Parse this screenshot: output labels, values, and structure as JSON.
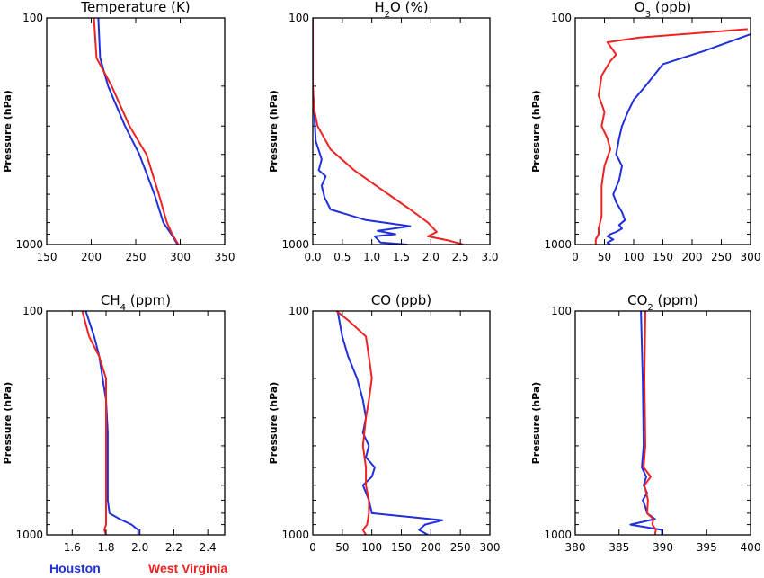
{
  "colors": {
    "houston": "#1f2fdc",
    "west_virginia": "#ee2222"
  },
  "legend": {
    "houston": "Houston",
    "west_virginia": "West Virginia"
  },
  "chart_data": [
    {
      "type": "line",
      "title": "Temperature (K)",
      "title_parts": [
        {
          "t": "Temperature (K)"
        }
      ],
      "ylabel": "Pressure (hPa)",
      "yscale": "log",
      "ylim": [
        1000,
        100
      ],
      "ytick_labels": [
        "100",
        "1000"
      ],
      "xlim": [
        150,
        350
      ],
      "xtick_values": [
        150,
        200,
        250,
        300,
        350
      ],
      "xtick_labels": [
        "150",
        "200",
        "250",
        "300",
        "350"
      ],
      "series": [
        {
          "name": "Houston",
          "color": "#1f2fdc",
          "points": [
            [
              208,
              100
            ],
            [
              210,
              150
            ],
            [
              219,
              200
            ],
            [
              238,
              300
            ],
            [
              254,
              400
            ],
            [
              271,
              600
            ],
            [
              281,
              800
            ],
            [
              290,
              900
            ],
            [
              297,
              1000
            ]
          ]
        },
        {
          "name": "West Virginia",
          "color": "#ee2222",
          "points": [
            [
              203,
              100
            ],
            [
              206,
              150
            ],
            [
              223,
              200
            ],
            [
              243,
              300
            ],
            [
              262,
              400
            ],
            [
              276,
              600
            ],
            [
              285,
              800
            ],
            [
              291,
              900
            ],
            [
              298,
              1000
            ]
          ]
        }
      ]
    },
    {
      "type": "line",
      "title": "H2O (%)",
      "title_parts": [
        {
          "t": "H"
        },
        {
          "t": "2",
          "sub": true
        },
        {
          "t": "O (%)"
        }
      ],
      "ylabel": "Pressure (hPa)",
      "yscale": "log",
      "ylim": [
        1000,
        100
      ],
      "ytick_labels": [
        "100",
        "1000"
      ],
      "xlim": [
        0,
        3
      ],
      "xtick_values": [
        0,
        0.5,
        1,
        1.5,
        2,
        2.5,
        3
      ],
      "xtick_labels": [
        "0.0",
        "0.5",
        "1.0",
        "1.5",
        "2.0",
        "2.5",
        "3.0"
      ],
      "series": [
        {
          "name": "Houston",
          "color": "#1f2fdc",
          "points": [
            [
              0,
              100
            ],
            [
              0,
              200
            ],
            [
              0.03,
              280
            ],
            [
              0.05,
              350
            ],
            [
              0.15,
              420
            ],
            [
              0.1,
              470
            ],
            [
              0.22,
              500
            ],
            [
              0.15,
              550
            ],
            [
              0.2,
              620
            ],
            [
              0.3,
              700
            ],
            [
              0.9,
              780
            ],
            [
              1.65,
              830
            ],
            [
              1.1,
              870
            ],
            [
              1.4,
              900
            ],
            [
              1.05,
              920
            ],
            [
              1.15,
              980
            ],
            [
              1.6,
              1000
            ]
          ]
        },
        {
          "name": "West Virginia",
          "color": "#ee2222",
          "points": [
            [
              0,
              100
            ],
            [
              0,
              200
            ],
            [
              0.02,
              250
            ],
            [
              0.08,
              300
            ],
            [
              0.3,
              380
            ],
            [
              0.7,
              470
            ],
            [
              1.2,
              580
            ],
            [
              1.65,
              700
            ],
            [
              1.95,
              800
            ],
            [
              2.1,
              880
            ],
            [
              1.95,
              920
            ],
            [
              2.3,
              960
            ],
            [
              2.55,
              1000
            ]
          ]
        }
      ]
    },
    {
      "type": "line",
      "title": "O3 (ppb)",
      "title_parts": [
        {
          "t": "O"
        },
        {
          "t": "3",
          "sub": true
        },
        {
          "t": " (ppb)"
        }
      ],
      "ylabel": "Pressure (hPa)",
      "yscale": "log",
      "ylim": [
        1000,
        100
      ],
      "ytick_labels": [
        "100",
        "1000"
      ],
      "xlim": [
        0,
        300
      ],
      "xtick_values": [
        0,
        50,
        100,
        150,
        200,
        250,
        300
      ],
      "xtick_labels": [
        "0",
        "50",
        "100",
        "150",
        "200",
        "250",
        "300"
      ],
      "series": [
        {
          "name": "Houston",
          "color": "#1f2fdc",
          "points": [
            [
              300,
              118
            ],
            [
              220,
              140
            ],
            [
              150,
              160
            ],
            [
              120,
              200
            ],
            [
              100,
              230
            ],
            [
              90,
              260
            ],
            [
              80,
              300
            ],
            [
              75,
              340
            ],
            [
              70,
              400
            ],
            [
              80,
              450
            ],
            [
              75,
              520
            ],
            [
              65,
              600
            ],
            [
              70,
              650
            ],
            [
              80,
              720
            ],
            [
              85,
              780
            ],
            [
              75,
              820
            ],
            [
              80,
              850
            ],
            [
              70,
              880
            ],
            [
              60,
              900
            ],
            [
              55,
              920
            ],
            [
              65,
              950
            ],
            [
              55,
              980
            ],
            [
              60,
              1000
            ]
          ]
        },
        {
          "name": "West Virginia",
          "color": "#ee2222",
          "points": [
            [
              295,
              112
            ],
            [
              110,
              122
            ],
            [
              55,
              128
            ],
            [
              70,
              145
            ],
            [
              60,
              155
            ],
            [
              45,
              180
            ],
            [
              40,
              220
            ],
            [
              50,
              260
            ],
            [
              45,
              300
            ],
            [
              55,
              340
            ],
            [
              60,
              380
            ],
            [
              50,
              450
            ],
            [
              45,
              550
            ],
            [
              45,
              650
            ],
            [
              45,
              750
            ],
            [
              40,
              850
            ],
            [
              40,
              900
            ],
            [
              35,
              950
            ],
            [
              35,
              1000
            ]
          ]
        }
      ]
    },
    {
      "type": "line",
      "title": "CH4 (ppm)",
      "title_parts": [
        {
          "t": "CH"
        },
        {
          "t": "4",
          "sub": true
        },
        {
          "t": " (ppm)"
        }
      ],
      "ylabel": "Pressure (hPa)",
      "yscale": "log",
      "ylim": [
        1000,
        100
      ],
      "ytick_labels": [
        "100",
        "1000"
      ],
      "xlim": [
        1.45,
        2.5
      ],
      "xtick_values": [
        1.6,
        1.8,
        2.0,
        2.2,
        2.4
      ],
      "xtick_labels": [
        "1.6",
        "1.8",
        "2.0",
        "2.2",
        "2.4"
      ],
      "series": [
        {
          "name": "Houston",
          "color": "#1f2fdc",
          "points": [
            [
              1.68,
              100
            ],
            [
              1.73,
              130
            ],
            [
              1.76,
              160
            ],
            [
              1.78,
              200
            ],
            [
              1.8,
              250
            ],
            [
              1.81,
              350
            ],
            [
              1.81,
              500
            ],
            [
              1.81,
              700
            ],
            [
              1.82,
              800
            ],
            [
              1.88,
              850
            ],
            [
              1.95,
              900
            ],
            [
              1.99,
              950
            ],
            [
              1.99,
              1000
            ]
          ]
        },
        {
          "name": "West Virginia",
          "color": "#ee2222",
          "points": [
            [
              1.66,
              100
            ],
            [
              1.7,
              130
            ],
            [
              1.76,
              160
            ],
            [
              1.8,
              200
            ],
            [
              1.8,
              300
            ],
            [
              1.8,
              500
            ],
            [
              1.8,
              700
            ],
            [
              1.8,
              900
            ],
            [
              1.79,
              950
            ],
            [
              1.8,
              1000
            ]
          ]
        }
      ]
    },
    {
      "type": "line",
      "title": "CO (ppb)",
      "title_parts": [
        {
          "t": "CO (ppb)"
        }
      ],
      "ylabel": "Pressure (hPa)",
      "yscale": "log",
      "ylim": [
        1000,
        100
      ],
      "ytick_labels": [
        "100",
        "1000"
      ],
      "xlim": [
        0,
        300
      ],
      "xtick_values": [
        0,
        50,
        100,
        150,
        200,
        250,
        300
      ],
      "xtick_labels": [
        "0",
        "50",
        "100",
        "150",
        "200",
        "250",
        "300"
      ],
      "series": [
        {
          "name": "Houston",
          "color": "#1f2fdc",
          "points": [
            [
              42,
              100
            ],
            [
              50,
              130
            ],
            [
              60,
              160
            ],
            [
              75,
              200
            ],
            [
              85,
              250
            ],
            [
              90,
              300
            ],
            [
              85,
              350
            ],
            [
              95,
              400
            ],
            [
              90,
              450
            ],
            [
              105,
              500
            ],
            [
              100,
              550
            ],
            [
              85,
              600
            ],
            [
              95,
              700
            ],
            [
              100,
              800
            ],
            [
              220,
              860
            ],
            [
              190,
              900
            ],
            [
              180,
              950
            ],
            [
              195,
              1000
            ]
          ]
        },
        {
          "name": "West Virginia",
          "color": "#ee2222",
          "points": [
            [
              40,
              100
            ],
            [
              60,
              110
            ],
            [
              90,
              130
            ],
            [
              95,
              160
            ],
            [
              100,
              200
            ],
            [
              95,
              250
            ],
            [
              90,
              300
            ],
            [
              85,
              400
            ],
            [
              90,
              500
            ],
            [
              90,
              600
            ],
            [
              95,
              700
            ],
            [
              95,
              800
            ],
            [
              92,
              900
            ],
            [
              85,
              950
            ],
            [
              90,
              1000
            ]
          ]
        }
      ]
    },
    {
      "type": "line",
      "title": "CO2 (ppm)",
      "title_parts": [
        {
          "t": "CO"
        },
        {
          "t": "2",
          "sub": true
        },
        {
          "t": " (ppm)"
        }
      ],
      "ylabel": "Pressure (hPa)",
      "yscale": "log",
      "ylim": [
        1000,
        100
      ],
      "ytick_labels": [
        "100",
        "1000"
      ],
      "xlim": [
        380,
        400
      ],
      "xtick_values": [
        380,
        385,
        390,
        395,
        400
      ],
      "xtick_labels": [
        "380",
        "385",
        "390",
        "395",
        "400"
      ],
      "series": [
        {
          "name": "Houston",
          "color": "#1f2fdc",
          "points": [
            [
              387.5,
              100
            ],
            [
              387.7,
              200
            ],
            [
              387.8,
              400
            ],
            [
              387.6,
              500
            ],
            [
              388.1,
              550
            ],
            [
              387.8,
              600
            ],
            [
              388.2,
              650
            ],
            [
              387.7,
              700
            ],
            [
              388.0,
              750
            ],
            [
              388.2,
              800
            ],
            [
              389.1,
              850
            ],
            [
              386.3,
              900
            ],
            [
              389.9,
              950
            ],
            [
              389.9,
              1000
            ]
          ]
        },
        {
          "name": "West Virginia",
          "color": "#ee2222",
          "points": [
            [
              388.0,
              100
            ],
            [
              387.9,
              200
            ],
            [
              388.0,
              400
            ],
            [
              387.8,
              500
            ],
            [
              388.6,
              550
            ],
            [
              387.9,
              600
            ],
            [
              388.3,
              700
            ],
            [
              388.2,
              800
            ],
            [
              388.9,
              850
            ],
            [
              388.8,
              900
            ],
            [
              389.2,
              950
            ],
            [
              389.1,
              1000
            ]
          ]
        }
      ]
    }
  ]
}
